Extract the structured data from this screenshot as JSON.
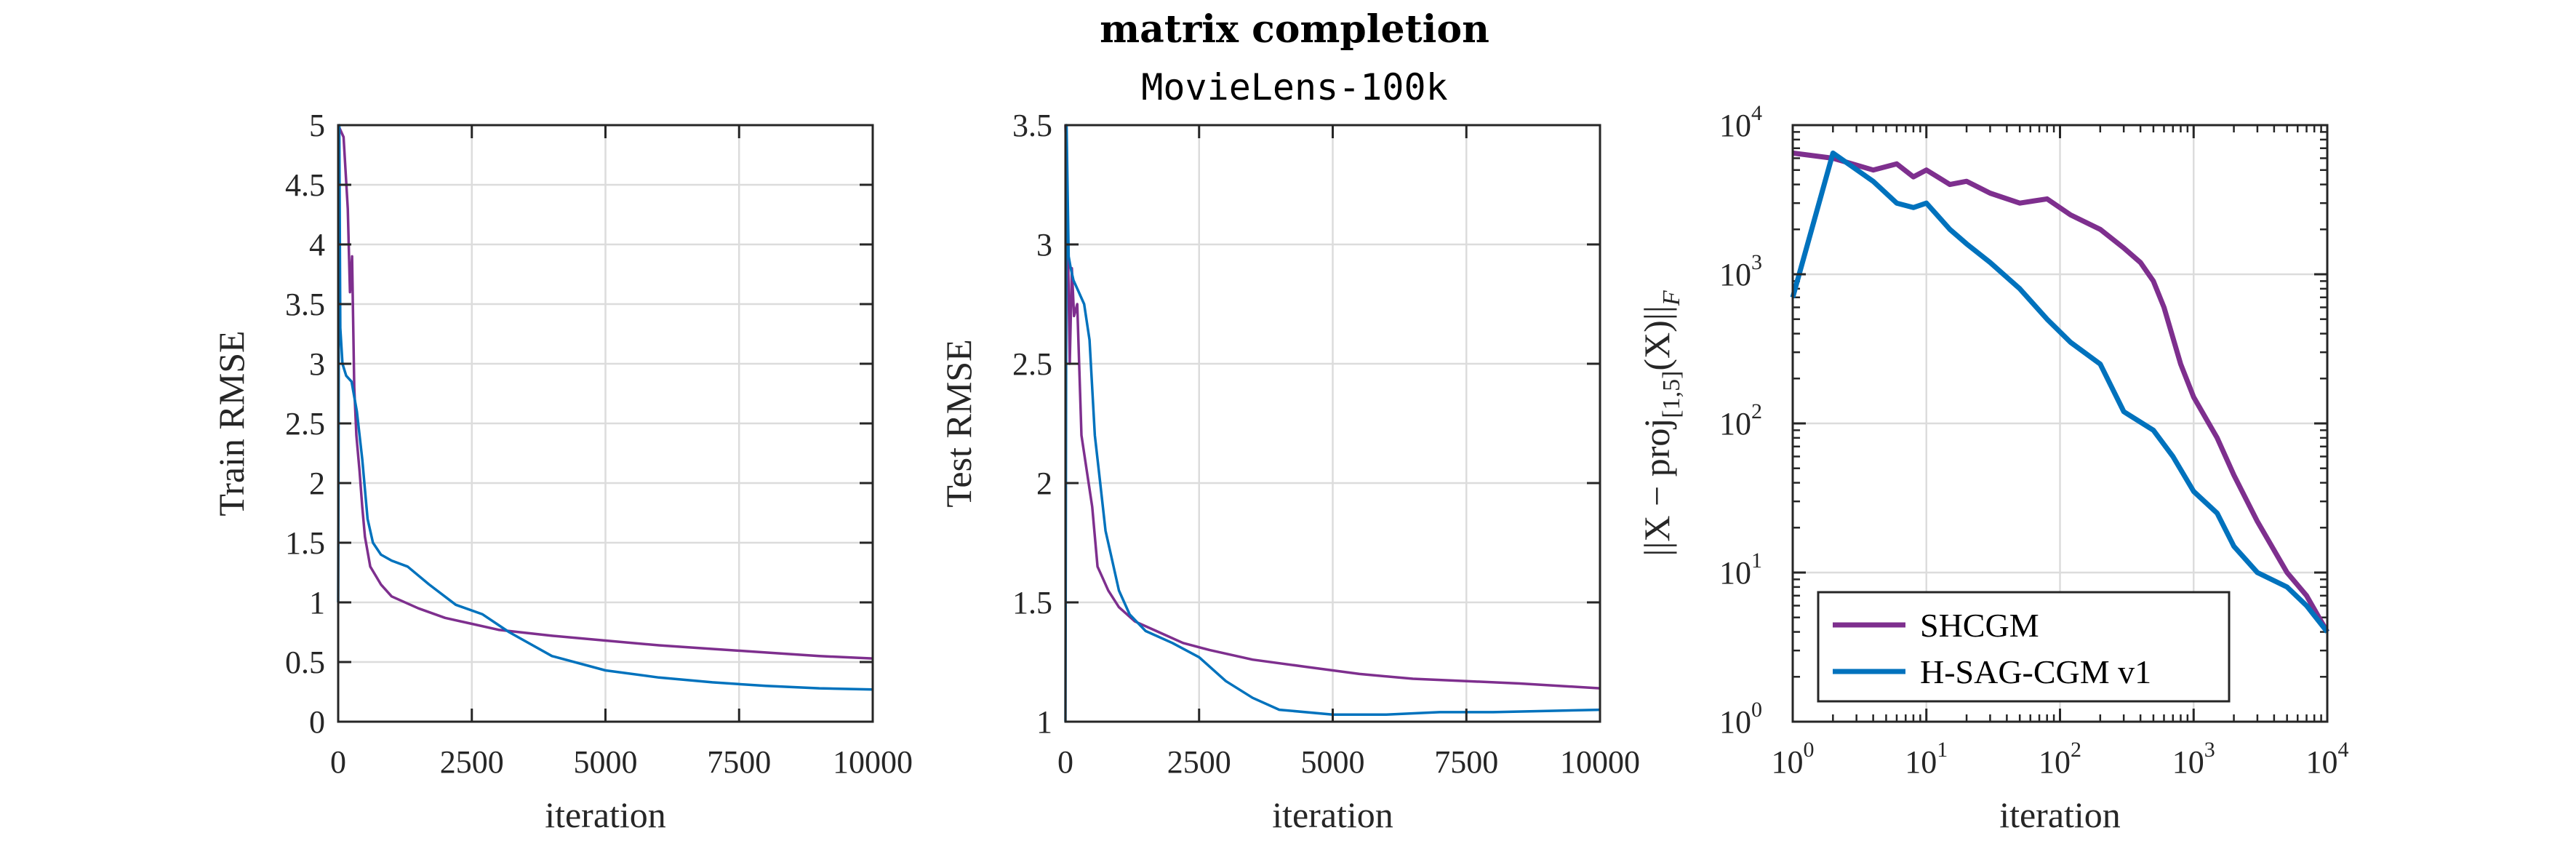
{
  "figure": {
    "title": "matrix completion",
    "subtitle": "MovieLens-100k"
  },
  "chart_data": [
    {
      "type": "line",
      "xlabel": "iteration",
      "ylabel": "Train RMSE",
      "xlim": [
        0,
        10000
      ],
      "ylim": [
        0,
        5
      ],
      "xticks": [
        0,
        2500,
        5000,
        7500,
        10000
      ],
      "xtick_labels": [
        "0",
        "2500",
        "5000",
        "7500",
        "10000"
      ],
      "yticks": [
        0,
        0.5,
        1,
        1.5,
        2,
        2.5,
        3,
        3.5,
        4,
        4.5,
        5
      ],
      "ytick_labels": [
        "0",
        "0.5",
        "1",
        "1.5",
        "2",
        "2.5",
        "3",
        "3.5",
        "4",
        "4.5",
        "5"
      ],
      "grid": true,
      "series": [
        {
          "color": "#7E2F8E",
          "x": [
            0,
            100,
            180,
            220,
            260,
            300,
            340,
            400,
            450,
            500,
            600,
            800,
            1000,
            1500,
            2000,
            2500,
            3000,
            4000,
            5000,
            6000,
            7000,
            8000,
            9000,
            10000
          ],
          "y": [
            5.0,
            4.9,
            4.3,
            3.6,
            3.9,
            2.8,
            2.4,
            2.1,
            1.8,
            1.55,
            1.3,
            1.15,
            1.05,
            0.95,
            0.87,
            0.82,
            0.77,
            0.72,
            0.68,
            0.64,
            0.61,
            0.58,
            0.55,
            0.53
          ]
        },
        {
          "color": "#0072BD",
          "x": [
            0,
            20,
            40,
            80,
            150,
            250,
            350,
            450,
            550,
            650,
            800,
            1000,
            1300,
            1700,
            2200,
            2700,
            3200,
            4000,
            5000,
            6000,
            7000,
            8000,
            9000,
            10000
          ],
          "y": [
            1.0,
            5.0,
            3.3,
            3.0,
            2.9,
            2.85,
            2.6,
            2.2,
            1.7,
            1.5,
            1.4,
            1.35,
            1.3,
            1.15,
            0.98,
            0.9,
            0.75,
            0.55,
            0.43,
            0.37,
            0.33,
            0.3,
            0.28,
            0.27
          ]
        }
      ]
    },
    {
      "type": "line",
      "xlabel": "iteration",
      "ylabel": "Test RMSE",
      "xlim": [
        0,
        10000
      ],
      "ylim": [
        1,
        3.5
      ],
      "xticks": [
        0,
        2500,
        5000,
        7500,
        10000
      ],
      "xtick_labels": [
        "0",
        "2500",
        "5000",
        "7500",
        "10000"
      ],
      "yticks": [
        1,
        1.5,
        2,
        2.5,
        3,
        3.5
      ],
      "ytick_labels": [
        "1",
        "1.5",
        "2",
        "2.5",
        "3",
        "3.5"
      ],
      "grid": true,
      "series": [
        {
          "color": "#7E2F8E",
          "x": [
            0,
            40,
            80,
            120,
            160,
            220,
            300,
            400,
            500,
            600,
            700,
            800,
            1000,
            1300,
            1700,
            2200,
            2700,
            3500,
            4500,
            5500,
            6500,
            7500,
            8500,
            10000
          ],
          "y": [
            3.5,
            3.1,
            2.5,
            2.9,
            2.7,
            2.75,
            2.2,
            2.05,
            1.9,
            1.65,
            1.6,
            1.55,
            1.48,
            1.42,
            1.38,
            1.33,
            1.3,
            1.26,
            1.23,
            1.2,
            1.18,
            1.17,
            1.16,
            1.14
          ]
        },
        {
          "color": "#0072BD",
          "x": [
            0,
            20,
            60,
            100,
            150,
            250,
            350,
            450,
            550,
            650,
            750,
            850,
            1000,
            1200,
            1500,
            2000,
            2500,
            3000,
            3500,
            4000,
            5000,
            6000,
            7000,
            8000,
            9000,
            10000
          ],
          "y": [
            1.0,
            3.5,
            2.95,
            2.9,
            2.85,
            2.8,
            2.75,
            2.6,
            2.2,
            2.0,
            1.8,
            1.7,
            1.55,
            1.45,
            1.38,
            1.33,
            1.27,
            1.17,
            1.1,
            1.05,
            1.03,
            1.03,
            1.04,
            1.04,
            1.045,
            1.05
          ]
        }
      ]
    },
    {
      "type": "line",
      "xscale": "log",
      "yscale": "log",
      "xlabel": "iteration",
      "ylabel": "||X − proj[1,5](X)||F",
      "ylabel_parts": {
        "pre": "||X − proj",
        "sub1": "[1,5]",
        "mid": "(X)||",
        "sub2": "F"
      },
      "xlim": [
        1,
        10000
      ],
      "ylim": [
        1,
        10000
      ],
      "xticks": [
        1,
        10,
        100,
        1000,
        10000
      ],
      "xtick_labels": [
        {
          "base": "10",
          "exp": "0"
        },
        {
          "base": "10",
          "exp": "1"
        },
        {
          "base": "10",
          "exp": "2"
        },
        {
          "base": "10",
          "exp": "3"
        },
        {
          "base": "10",
          "exp": "4"
        }
      ],
      "yticks": [
        1,
        10,
        100,
        1000,
        10000
      ],
      "ytick_labels": [
        {
          "base": "10",
          "exp": "0"
        },
        {
          "base": "10",
          "exp": "1"
        },
        {
          "base": "10",
          "exp": "2"
        },
        {
          "base": "10",
          "exp": "3"
        },
        {
          "base": "10",
          "exp": "4"
        }
      ],
      "grid": true,
      "legend": {
        "position": "bottom-left",
        "entries": [
          "SHCGM",
          "H-SAG-CGM v1"
        ]
      },
      "series": [
        {
          "name": "SHCGM",
          "color": "#7E2F8E",
          "x": [
            1,
            2,
            4,
            6,
            8,
            10,
            15,
            20,
            30,
            50,
            80,
            120,
            200,
            300,
            400,
            500,
            600,
            800,
            1000,
            1500,
            2000,
            3000,
            5000,
            7000,
            10000
          ],
          "y": [
            6500,
            6000,
            5000,
            5500,
            4500,
            5000,
            4000,
            4200,
            3500,
            3000,
            3200,
            2500,
            2000,
            1500,
            1200,
            900,
            600,
            250,
            150,
            80,
            45,
            22,
            10,
            7,
            4
          ]
        },
        {
          "name": "H-SAG-CGM v1",
          "color": "#0072BD",
          "x": [
            1,
            2,
            4,
            6,
            8,
            10,
            15,
            20,
            30,
            50,
            80,
            120,
            200,
            300,
            500,
            700,
            1000,
            1500,
            2000,
            3000,
            5000,
            7000,
            10000
          ],
          "y": [
            700,
            6500,
            4200,
            3000,
            2800,
            3000,
            2000,
            1600,
            1200,
            800,
            500,
            350,
            250,
            120,
            90,
            60,
            35,
            25,
            15,
            10,
            8,
            6,
            4
          ]
        }
      ]
    }
  ]
}
